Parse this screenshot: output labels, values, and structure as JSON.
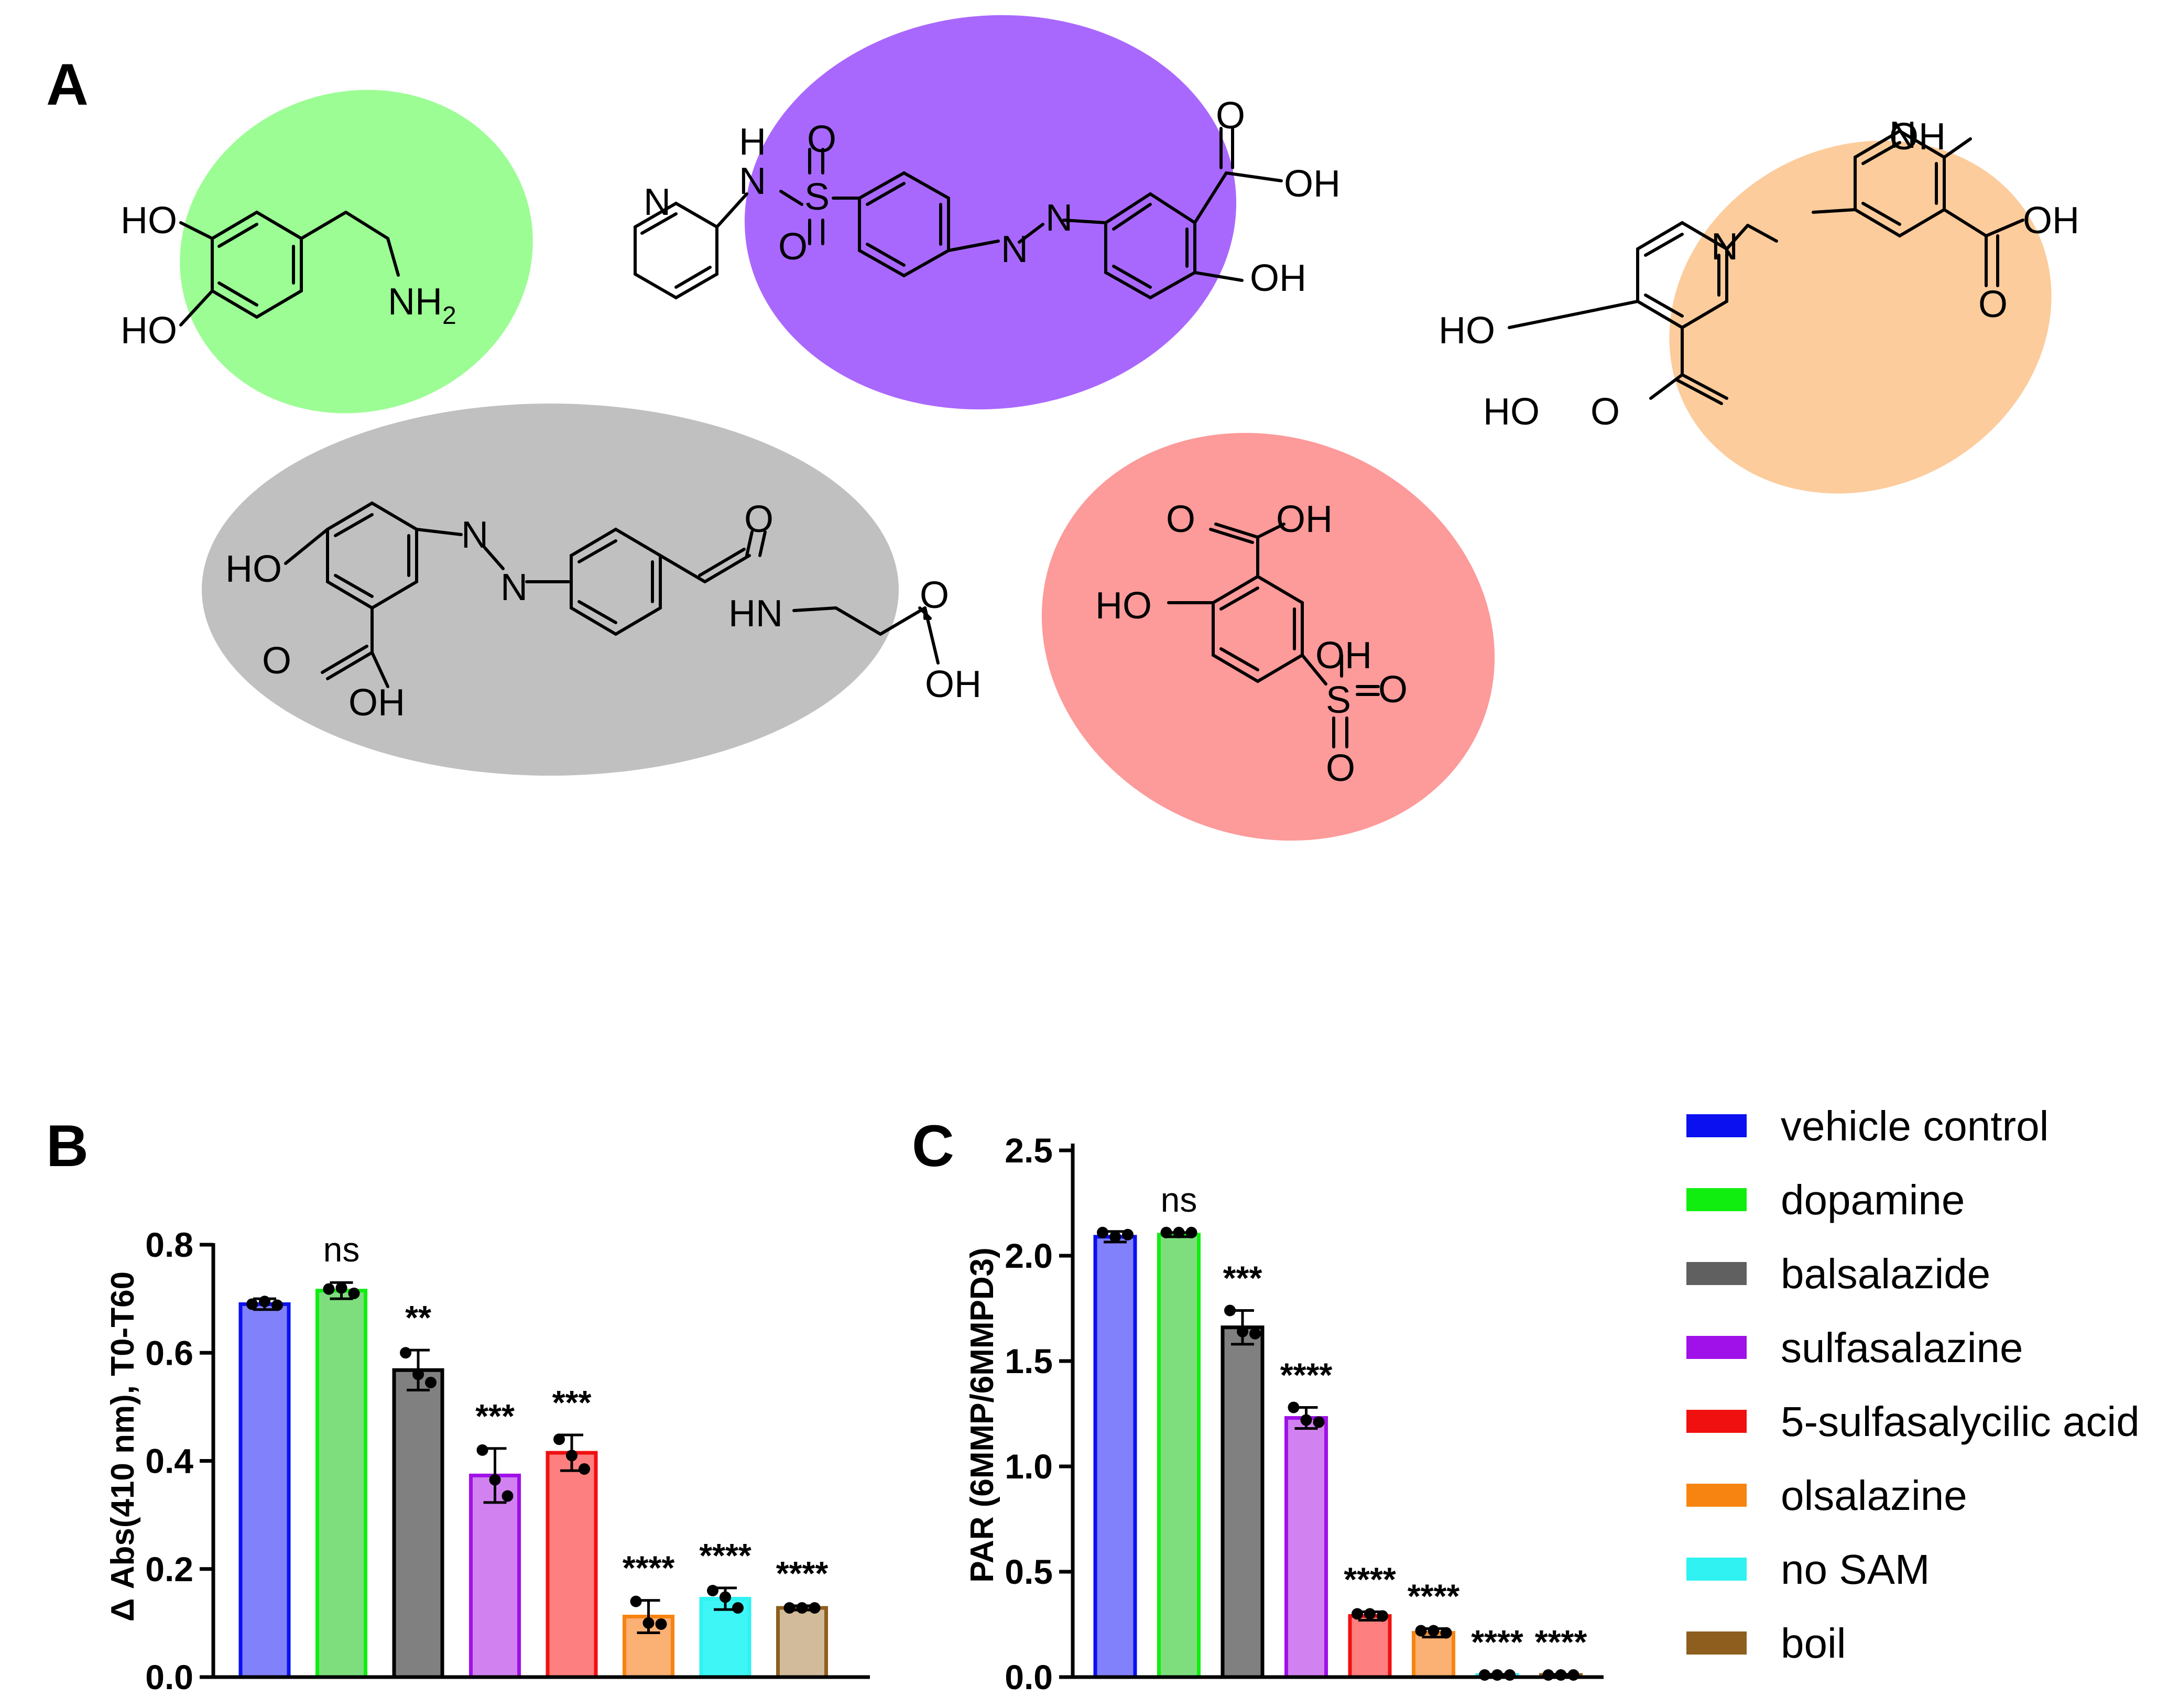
{
  "panel_labels": {
    "a": "A",
    "b": "B",
    "c": "C"
  },
  "molecules": {
    "dopamine": {
      "color": "#9cfd94",
      "ho1": "HO",
      "ho2": "HO",
      "nh": "NH",
      "nh_sub": "2"
    },
    "sulfasalazine": {
      "color": "#a968fd",
      "n_pyr": "N",
      "h": "H",
      "n": "N",
      "s": "S",
      "o1": "O",
      "o2": "O",
      "az1": "N",
      "az2": "N",
      "o_acid": "O",
      "oh_acid": "OH",
      "oh": "OH"
    },
    "olsalazine": {
      "color": "#fccc9c",
      "oh_top": "OH",
      "az1": "N",
      "az2": "N",
      "oh_acid1": "OH",
      "o_acid1": "O",
      "ho": "HO",
      "ho_acid2": "HO",
      "o_acid2": "O"
    },
    "balsalazide": {
      "color": "#c0c0c0",
      "ho": "HO",
      "az1": "N",
      "az2": "N",
      "o_amide": "O",
      "hn": "HN",
      "o_acid": "O",
      "oh_acid": "OH",
      "o_sal": "O",
      "oh_sal": "OH"
    },
    "sulfosalicylic": {
      "color": "#fd9a9a",
      "o_acid": "O",
      "oh_acid": "OH",
      "ho": "HO",
      "oh_s": "OH",
      "s": "S",
      "o1": "O",
      "o2": "O"
    }
  },
  "legend": [
    {
      "label": "vehicle control",
      "color": "#0a10f0"
    },
    {
      "label": "dopamine",
      "color": "#10ee10"
    },
    {
      "label": "balsalazide",
      "color": "#606060"
    },
    {
      "label": "sulfasalazine",
      "color": "#a010e8"
    },
    {
      "label": "5-sulfasalycilic acid",
      "color": "#f01010"
    },
    {
      "label": "olsalazine",
      "color": "#f78410"
    },
    {
      "label": "no SAM",
      "color": "#30f2f2"
    },
    {
      "label": "boil",
      "color": "#8e5e1e"
    }
  ],
  "chart_data": [
    {
      "type": "bar",
      "panel": "B",
      "title": "",
      "xlabel": "",
      "ylabel": "Δ Abs(410 nm), T0-T60",
      "ylim": [
        0,
        0.8
      ],
      "yticks": [
        "0.0",
        "0.2",
        "0.4",
        "0.6",
        "0.8"
      ],
      "categories": [
        "vehicle control",
        "dopamine",
        "balsalazide",
        "sulfasalazine",
        "5-sulfasalycilic acid",
        "olsalazine",
        "no SAM",
        "boil"
      ],
      "values": [
        0.69,
        0.715,
        0.568,
        0.373,
        0.415,
        0.112,
        0.145,
        0.128
      ],
      "errors": [
        0.01,
        0.015,
        0.037,
        0.05,
        0.033,
        0.03,
        0.02,
        0.004
      ],
      "points": [
        [
          0.69,
          0.695,
          0.688
        ],
        [
          0.718,
          0.72,
          0.71
        ],
        [
          0.6,
          0.56,
          0.545
        ],
        [
          0.42,
          0.365,
          0.335
        ],
        [
          0.44,
          0.41,
          0.385
        ],
        [
          0.14,
          0.1,
          0.098
        ],
        [
          0.16,
          0.148,
          0.128
        ],
        [
          0.128,
          0.128,
          0.128
        ]
      ],
      "significance": [
        "",
        "ns",
        "**",
        "***",
        "***",
        "****",
        "****",
        "****"
      ],
      "bar_fill": [
        "#8181fb",
        "#7ede7e",
        "#808080",
        "#d282f0",
        "#fd7f7f",
        "#fbb074",
        "#3ef6f6",
        "#d2bb9b"
      ],
      "bar_edge": [
        "#0a10f0",
        "#10ee10",
        "#000000",
        "#a010e8",
        "#f01010",
        "#f78410",
        "#30f2f2",
        "#8e5e1e"
      ]
    },
    {
      "type": "bar",
      "panel": "C",
      "title": "",
      "xlabel": "",
      "ylabel": "PAR (6MMP/6MMPD3)",
      "ylim": [
        0,
        2.5
      ],
      "yticks": [
        "0.0",
        "0.5",
        "1.0",
        "1.5",
        "2.0",
        "2.5"
      ],
      "categories": [
        "vehicle control",
        "dopamine",
        "balsalazide",
        "sulfasalazine",
        "5-sulfasalycilic acid",
        "olsalazine",
        "no SAM",
        "boil"
      ],
      "values": [
        2.09,
        2.1,
        1.66,
        1.23,
        0.29,
        0.21,
        0.01,
        0.01
      ],
      "errors": [
        0.025,
        0.01,
        0.08,
        0.05,
        0.02,
        0.02,
        0.003,
        0.003
      ],
      "points": [
        [
          2.11,
          2.09,
          2.1
        ],
        [
          2.11,
          2.11,
          2.11
        ],
        [
          1.74,
          1.64,
          1.63
        ],
        [
          1.28,
          1.22,
          1.21
        ],
        [
          0.3,
          0.3,
          0.29
        ],
        [
          0.22,
          0.22,
          0.21
        ],
        [
          0.01,
          0.01,
          0.01
        ],
        [
          0.01,
          0.01,
          0.01
        ]
      ],
      "significance": [
        "",
        "ns",
        "***",
        "****",
        "****",
        "****",
        "****",
        "****"
      ],
      "bar_fill": [
        "#8181fb",
        "#7ede7e",
        "#808080",
        "#d282f0",
        "#fd7f7f",
        "#fbb074",
        "#3ef6f6",
        "#d2bb9b"
      ],
      "bar_edge": [
        "#0a10f0",
        "#10ee10",
        "#000000",
        "#a010e8",
        "#f01010",
        "#f78410",
        "#30f2f2",
        "#8e5e1e"
      ]
    }
  ]
}
